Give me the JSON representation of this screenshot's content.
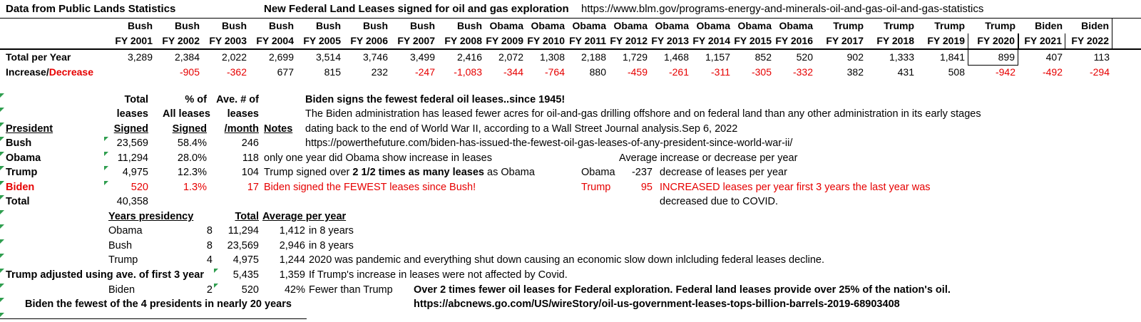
{
  "colors": {
    "negative_red": "#e60000",
    "indicator_green": "#2f9e4f"
  },
  "top": {
    "title_left": "Data from Public Lands Statistics",
    "title_center": "New Federal Land Leases signed for oil and gas exploration",
    "title_url": "https://www.blm.gov/programs-energy-and-minerals-oil-and-gas-oil-and-gas-statistics",
    "row_labels": {
      "total_per_year": "Total per Year",
      "increase": "Increase/",
      "decrease": "Decrease"
    },
    "columns": [
      {
        "president": "Bush",
        "fy": "FY 2001",
        "total": "3,289",
        "change": ""
      },
      {
        "president": "Bush",
        "fy": "FY 2002",
        "total": "2,384",
        "change": "-905"
      },
      {
        "president": "Bush",
        "fy": "FY 2003",
        "total": "2,022",
        "change": "-362"
      },
      {
        "president": "Bush",
        "fy": "FY 2004",
        "total": "2,699",
        "change": "677"
      },
      {
        "president": "Bush",
        "fy": "FY 2005",
        "total": "3,514",
        "change": "815"
      },
      {
        "president": "Bush",
        "fy": "FY 2006",
        "total": "3,746",
        "change": "232"
      },
      {
        "president": "Bush",
        "fy": "FY 2007",
        "total": "3,499",
        "change": "-247"
      },
      {
        "president": "Bush",
        "fy": "FY 2008",
        "total": "2,416",
        "change": "-1,083"
      },
      {
        "president": "Obama",
        "fy": "FY 2009",
        "total": "2,072",
        "change": "-344"
      },
      {
        "president": "Obama",
        "fy": "FY 2010",
        "total": "1,308",
        "change": "-764"
      },
      {
        "president": "Obama",
        "fy": "FY 2011",
        "total": "2,188",
        "change": "880"
      },
      {
        "president": "Obama",
        "fy": "FY 2012",
        "total": "1,729",
        "change": "-459"
      },
      {
        "president": "Obama",
        "fy": "FY 2013",
        "total": "1,468",
        "change": "-261"
      },
      {
        "president": "Obama",
        "fy": "FY 2014",
        "total": "1,157",
        "change": "-311"
      },
      {
        "president": "Obama",
        "fy": "FY 2015",
        "total": "852",
        "change": "-305"
      },
      {
        "president": "Obama",
        "fy": "FY 2016",
        "total": "520",
        "change": "-332"
      },
      {
        "president": "Trump",
        "fy": "FY 2017",
        "total": "902",
        "change": "382"
      },
      {
        "president": "Trump",
        "fy": "FY 2018",
        "total": "1,333",
        "change": "431"
      },
      {
        "president": "Trump",
        "fy": "FY 2019",
        "total": "1,841",
        "change": "508"
      },
      {
        "president": "Trump",
        "fy": "FY 2020",
        "total": "899",
        "change": "-942"
      },
      {
        "president": "Biden",
        "fy": "FY 2021",
        "total": "407",
        "change": "-492"
      },
      {
        "president": "Biden",
        "fy": "FY 2022",
        "total": "113",
        "change": "-294"
      }
    ]
  },
  "summary": {
    "headers": {
      "president": "President",
      "total_l1": "Total",
      "total_l2": "leases",
      "total_l3": "Signed",
      "pct_l1": "% of",
      "pct_l2": "All leases",
      "pct_l3": "Signed",
      "avg_l1": "Ave. # of",
      "avg_l2": "leases",
      "avg_l3": "/month",
      "notes": "Notes"
    },
    "headline": "Biden signs the fewest federal oil leases..since 1945!",
    "headline_sub1": "The Biden administration has leased fewer acres for oil-and-gas drilling offshore and on federal land than any other administration in its early stages",
    "headline_sub2": "dating back to the end of World War II, according to a Wall Street Journal analysis.Sep 6, 2022",
    "rows": {
      "bush": {
        "name": "Bush",
        "total": "23,569",
        "pct": "58.4%",
        "avg": "246",
        "note": "https://powerthefuture.com/biden-has-issued-the-fewest-oil-gas-leases-of-any-president-since-world-war-ii/"
      },
      "obama": {
        "name": "Obama",
        "total": "11,294",
        "pct": "28.0%",
        "avg": "118",
        "note": "only one year did Obama show increase in leases",
        "annotation": "Average increase or decrease per year"
      },
      "trump": {
        "name": "Trump",
        "total": "4,975",
        "pct": "12.3%",
        "avg": "104",
        "note_pre": "Trump  signed over ",
        "note_bold": "2 1/2  times as many leases ",
        "note_post": "as Obama",
        "side_label": "Obama",
        "side_value": "-237",
        "side_text": "decrease of leases per year"
      },
      "biden": {
        "name": "Biden",
        "total": "520",
        "pct": "1.3%",
        "avg": "17",
        "note": "Biden signed the FEWEST leases since Bush!",
        "side_label": "Trump",
        "side_value": "95",
        "side_text": "INCREASED leases per year first 3 years the last year was"
      },
      "total": {
        "name": "Total",
        "total": "40,358",
        "side_text": "decreased due to COVID."
      }
    }
  },
  "years": {
    "headers": {
      "presidency": "Years presidency",
      "total": "Total",
      "avg": "Average per year"
    },
    "rows": {
      "obama": {
        "name": "Obama",
        "years": "8",
        "total": "11,294",
        "avg": "1,412",
        "note": "in 8 years"
      },
      "bush": {
        "name": "Bush",
        "years": "8",
        "total": "23,569",
        "avg": "2,946",
        "note": "in 8 years"
      },
      "trump": {
        "name": "Trump",
        "years": "4",
        "total": "4,975",
        "avg": "1,244",
        "note": "2020 was pandemic and everything shut down causing an economic  slow down inlcluding federal leases decline."
      },
      "trump_adj": {
        "name": "Trump adjusted using ave. of first 3 year",
        "total": "5,435",
        "avg": "1,359",
        "note": "If Trump's increase in leases were not affected by Covid."
      },
      "biden": {
        "name": "Biden",
        "years": "2",
        "total": "520",
        "avg": "42%",
        "note": "Fewer than Trump",
        "note_bold": "Over 2 times fewer oil leases for Federal exploration.  Federal land leases provide over 25% of the nation's oil."
      }
    },
    "footer": {
      "left": "Biden the fewest of the 4 presidents in nearly 20 years",
      "url": "https://abcnews.go.com/US/wireStory/oil-us-government-leases-tops-billion-barrels-2019-68903408"
    }
  }
}
